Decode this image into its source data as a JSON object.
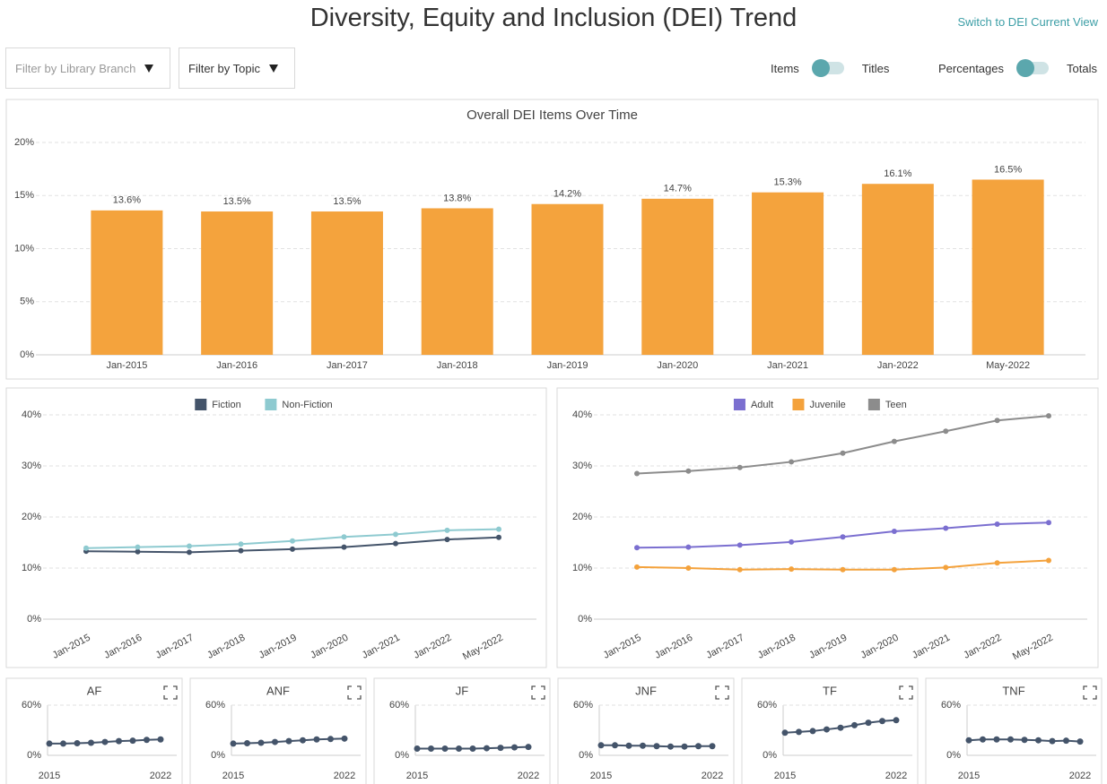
{
  "header": {
    "title": "Diversity, Equity and Inclusion (DEI) Trend",
    "link": "Switch to DEI Current View"
  },
  "filters": [
    "Filter by Library Branch",
    "Filter by Topic"
  ],
  "toggles": [
    {
      "left": "Items",
      "right": "Titles"
    },
    {
      "left": "Percentages",
      "right": "Totals"
    }
  ],
  "chart_data": [
    {
      "type": "bar",
      "title": "Overall DEI Items Over Time",
      "categories": [
        "Jan-2015",
        "Jan-2016",
        "Jan-2017",
        "Jan-2018",
        "Jan-2019",
        "Jan-2020",
        "Jan-2021",
        "Jan-2022",
        "May-2022"
      ],
      "values": [
        13.6,
        13.5,
        13.5,
        13.8,
        14.2,
        14.7,
        15.3,
        16.1,
        16.5
      ],
      "value_labels": [
        "13.6%",
        "13.5%",
        "13.5%",
        "13.8%",
        "14.2%",
        "14.7%",
        "15.3%",
        "16.1%",
        "16.5%"
      ],
      "color": "#f4a33d",
      "ylim": [
        0,
        20
      ],
      "yticks": [
        {
          "value": 0,
          "label": "0%"
        },
        {
          "value": 5,
          "label": "5%"
        },
        {
          "value": 10,
          "label": "10%"
        },
        {
          "value": 15,
          "label": "15%"
        },
        {
          "value": 20,
          "label": "20%"
        }
      ],
      "grid": true
    },
    {
      "type": "line",
      "categories": [
        "Jan-2015",
        "Jan-2016",
        "Jan-2017",
        "Jan-2018",
        "Jan-2019",
        "Jan-2020",
        "Jan-2021",
        "Jan-2022",
        "May-2022"
      ],
      "series": [
        {
          "name": "Fiction",
          "color": "#44546a",
          "values": [
            13.3,
            13.2,
            13.1,
            13.4,
            13.7,
            14.1,
            14.8,
            15.6,
            16.0
          ]
        },
        {
          "name": "Non-Fiction",
          "color": "#8ecad0",
          "values": [
            13.9,
            14.1,
            14.3,
            14.7,
            15.3,
            16.1,
            16.6,
            17.4,
            17.6
          ]
        }
      ],
      "ylim": [
        0,
        40
      ],
      "yticks": [
        {
          "value": 0,
          "label": "0%"
        },
        {
          "value": 10,
          "label": "10%"
        },
        {
          "value": 20,
          "label": "20%"
        },
        {
          "value": 30,
          "label": "30%"
        },
        {
          "value": 40,
          "label": "40%"
        }
      ],
      "grid": true,
      "legend": "top"
    },
    {
      "type": "line",
      "categories": [
        "Jan-2015",
        "Jan-2016",
        "Jan-2017",
        "Jan-2018",
        "Jan-2019",
        "Jan-2020",
        "Jan-2021",
        "Jan-2022",
        "May-2022"
      ],
      "series": [
        {
          "name": "Adult",
          "color": "#7b6fd0",
          "values": [
            14.0,
            14.1,
            14.5,
            15.1,
            16.1,
            17.2,
            17.8,
            18.6,
            18.9
          ]
        },
        {
          "name": "Juvenile",
          "color": "#f4a23c",
          "values": [
            10.2,
            10.0,
            9.7,
            9.8,
            9.7,
            9.7,
            10.1,
            11.0,
            11.5
          ]
        },
        {
          "name": "Teen",
          "color": "#8c8c8c",
          "values": [
            28.5,
            29.0,
            29.7,
            30.8,
            32.5,
            34.8,
            36.8,
            38.9,
            39.8
          ]
        }
      ],
      "ylim": [
        0,
        40
      ],
      "yticks": [
        {
          "value": 0,
          "label": "0%"
        },
        {
          "value": 10,
          "label": "10%"
        },
        {
          "value": 20,
          "label": "20%"
        },
        {
          "value": 30,
          "label": "30%"
        },
        {
          "value": 40,
          "label": "40%"
        }
      ],
      "grid": true,
      "legend": "top"
    },
    {
      "type": "line",
      "title": "AF",
      "categories": [
        "2015",
        null,
        null,
        null,
        null,
        null,
        null,
        null,
        "2022"
      ],
      "series": [
        {
          "name": "AF",
          "color": "#44546a",
          "values": [
            14,
            14,
            14.5,
            15,
            16,
            17,
            17.5,
            18.5,
            19
          ]
        }
      ],
      "ylim": [
        0,
        60
      ],
      "yticks": [
        {
          "value": 0,
          "label": "0%"
        },
        {
          "value": 60,
          "label": "60%"
        }
      ],
      "grid": true
    },
    {
      "type": "line",
      "title": "ANF",
      "categories": [
        "2015",
        null,
        null,
        null,
        null,
        null,
        null,
        null,
        "2022"
      ],
      "series": [
        {
          "name": "ANF",
          "color": "#44546a",
          "values": [
            14,
            14.5,
            15,
            16,
            17,
            18,
            19,
            19.5,
            20
          ]
        }
      ],
      "ylim": [
        0,
        60
      ],
      "yticks": [
        {
          "value": 0,
          "label": "0%"
        },
        {
          "value": 60,
          "label": "60%"
        }
      ],
      "grid": true
    },
    {
      "type": "line",
      "title": "JF",
      "categories": [
        "2015",
        null,
        null,
        null,
        null,
        null,
        null,
        null,
        "2022"
      ],
      "series": [
        {
          "name": "JF",
          "color": "#44546a",
          "values": [
            8,
            8,
            8,
            8,
            8,
            8.5,
            9,
            9.5,
            10
          ]
        }
      ],
      "ylim": [
        0,
        60
      ],
      "yticks": [
        {
          "value": 0,
          "label": "0%"
        },
        {
          "value": 60,
          "label": "60%"
        }
      ],
      "grid": true
    },
    {
      "type": "line",
      "title": "JNF",
      "categories": [
        "2015",
        null,
        null,
        null,
        null,
        null,
        null,
        null,
        "2022"
      ],
      "series": [
        {
          "name": "JNF",
          "color": "#44546a",
          "values": [
            12,
            12,
            11.5,
            11.5,
            11,
            10.5,
            10.5,
            11,
            11
          ]
        }
      ],
      "ylim": [
        0,
        60
      ],
      "yticks": [
        {
          "value": 0,
          "label": "0%"
        },
        {
          "value": 60,
          "label": "60%"
        }
      ],
      "grid": true
    },
    {
      "type": "line",
      "title": "TF",
      "categories": [
        "2015",
        null,
        null,
        null,
        null,
        null,
        null,
        null,
        "2022"
      ],
      "series": [
        {
          "name": "TF",
          "color": "#44546a",
          "values": [
            27,
            28,
            29,
            31,
            33,
            36,
            39,
            41,
            42
          ]
        }
      ],
      "ylim": [
        0,
        60
      ],
      "yticks": [
        {
          "value": 0,
          "label": "0%"
        },
        {
          "value": 60,
          "label": "60%"
        }
      ],
      "grid": true
    },
    {
      "type": "line",
      "title": "TNF",
      "categories": [
        "2015",
        null,
        null,
        null,
        null,
        null,
        null,
        null,
        "2022"
      ],
      "series": [
        {
          "name": "TNF",
          "color": "#44546a",
          "values": [
            18,
            19,
            19,
            19,
            18.5,
            18,
            17,
            17.5,
            16.5
          ]
        }
      ],
      "ylim": [
        0,
        60
      ],
      "yticks": [
        {
          "value": 0,
          "label": "0%"
        },
        {
          "value": 60,
          "label": "60%"
        }
      ],
      "grid": true
    }
  ]
}
